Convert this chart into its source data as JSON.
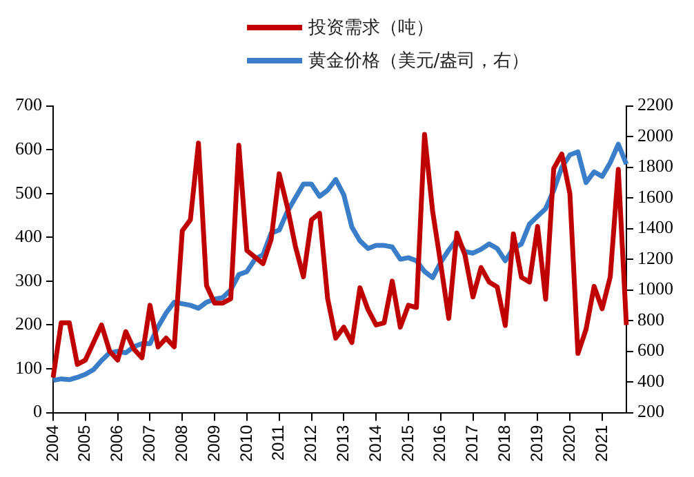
{
  "chart_data": {
    "type": "line",
    "legend": "top",
    "grid": false,
    "marker": "none",
    "categories": [
      "2004",
      null,
      null,
      null,
      "2005",
      null,
      null,
      null,
      "2006",
      null,
      null,
      null,
      "2007",
      null,
      null,
      null,
      "2008",
      null,
      null,
      null,
      "2009",
      null,
      null,
      null,
      "2010",
      null,
      null,
      null,
      "2011",
      null,
      null,
      null,
      "2012",
      null,
      null,
      null,
      "2013",
      null,
      null,
      null,
      "2014",
      null,
      null,
      null,
      "2015",
      null,
      null,
      null,
      "2016",
      null,
      null,
      null,
      "2017",
      null,
      null,
      null,
      "2018",
      null,
      null,
      null,
      "2019",
      null,
      null,
      null,
      "2020",
      null,
      null,
      null,
      "2021",
      null,
      null,
      null
    ],
    "ylim": [
      0,
      700
    ],
    "yticks": [
      0,
      100,
      200,
      300,
      400,
      500,
      600,
      700
    ],
    "y2lim": [
      200,
      2200
    ],
    "y2ticks": [
      200,
      400,
      600,
      800,
      1000,
      1200,
      1400,
      1600,
      1800,
      2000,
      2200
    ],
    "series": [
      {
        "name": "投资需求（吨）",
        "color": "#c00000",
        "values": [
          80,
          205,
          205,
          110,
          120,
          160,
          200,
          140,
          120,
          185,
          145,
          125,
          245,
          150,
          170,
          150,
          415,
          440,
          615,
          290,
          250,
          250,
          260,
          610,
          370,
          355,
          340,
          395,
          545,
          470,
          380,
          310,
          440,
          455,
          260,
          170,
          195,
          160,
          285,
          235,
          200,
          205,
          300,
          195,
          245,
          240,
          635,
          460,
          340,
          215,
          410,
          360,
          264,
          331,
          298,
          287,
          199,
          408,
          309,
          298,
          425,
          259,
          557,
          590,
          500,
          135,
          190,
          288,
          237,
          310,
          555,
          200
        ]
      },
      {
        "name": "黄金价格（美元/盎司，右）",
        "color": "#3a7dc9",
        "axis": "y2",
        "values": [
          410,
          420,
          415,
          430,
          450,
          480,
          540,
          590,
          600,
          590,
          630,
          650,
          650,
          760,
          850,
          920,
          910,
          900,
          880,
          920,
          940,
          950,
          1000,
          1100,
          1120,
          1200,
          1230,
          1370,
          1390,
          1510,
          1600,
          1690,
          1690,
          1610,
          1650,
          1720,
          1620,
          1410,
          1320,
          1270,
          1290,
          1290,
          1280,
          1200,
          1210,
          1190,
          1120,
          1080,
          1180,
          1260,
          1330,
          1250,
          1240,
          1265,
          1300,
          1270,
          1190,
          1270,
          1300,
          1430,
          1480,
          1530,
          1650,
          1800,
          1880,
          1900,
          1700,
          1770,
          1740,
          1830,
          1950,
          1820
        ]
      }
    ]
  }
}
